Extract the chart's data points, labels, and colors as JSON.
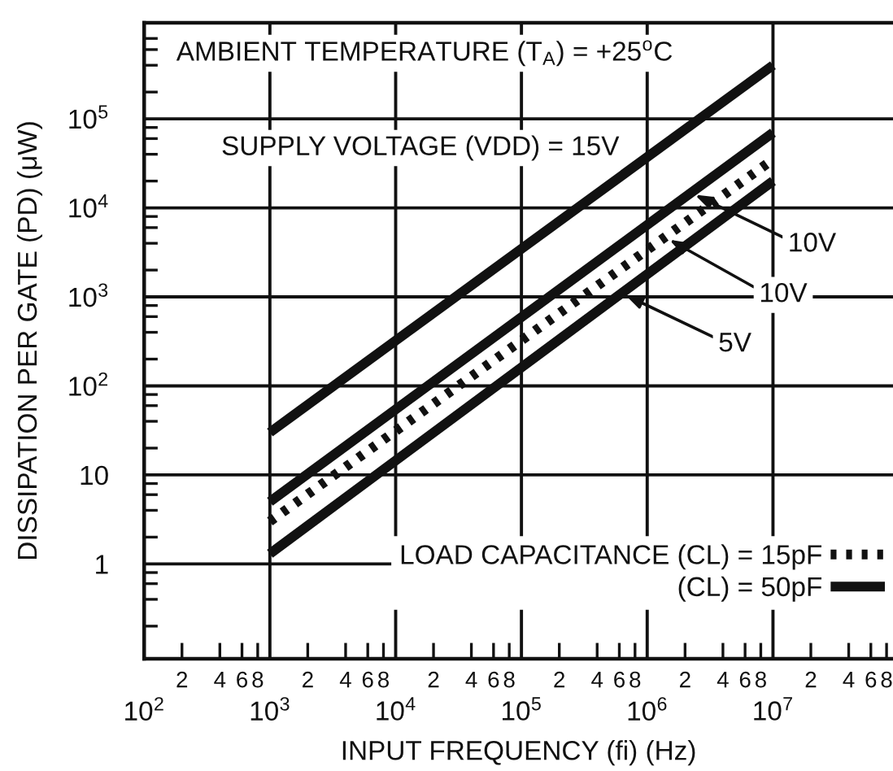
{
  "chart_data": {
    "type": "line",
    "xlabel": "INPUT FREQUENCY (fi) (Hz)",
    "ylabel": "DISSIPATION PER GATE (PD) (μW)",
    "x": [
      1000,
      10000000
    ],
    "series": [
      {
        "name": "LOAD CAPACITANCE (CL) = 15pF",
        "color": "#111111",
        "line_style": "dotted",
        "values": [
          3,
          35000
        ]
      },
      {
        "name": "(CL) = 50pF",
        "color": "#111111",
        "values": [
          30,
          400000
        ]
      },
      {
        "color": "#111111",
        "values": [
          5,
          70000
        ]
      },
      {
        "color": "#111111",
        "values": [
          1.3,
          20000
        ]
      }
    ],
    "line_style": "solid",
    "log": "xy",
    "xlim": [
      100,
      90000000
    ],
    "ylim": [
      0.086,
      1200000
    ],
    "xticks": [
      {
        "value": 100,
        "label": "10$^{2}$"
      },
      {
        "value": 200,
        "label": null
      },
      {
        "value": 400,
        "label": null
      },
      {
        "value": 600,
        "label": null
      },
      {
        "value": 800,
        "label": null
      },
      {
        "value": 1000,
        "label": "10$^{3}$"
      },
      {
        "value": 2000,
        "label": null
      },
      {
        "value": 4000,
        "label": null
      },
      {
        "value": 6000,
        "label": null
      },
      {
        "value": 8000,
        "label": null
      },
      {
        "value": 10000,
        "label": "10$^{4}$"
      },
      {
        "value": 20000,
        "label": null
      },
      {
        "value": 40000,
        "label": null
      },
      {
        "value": 60000,
        "label": null
      },
      {
        "value": 80000,
        "label": null
      },
      {
        "value": 100000,
        "label": "10$^{5}$"
      },
      {
        "value": 200000,
        "label": null
      },
      {
        "value": 400000,
        "label": null
      },
      {
        "value": 600000,
        "label": null
      },
      {
        "value": 800000,
        "label": null
      },
      {
        "value": 1000000,
        "label": "10$^{6}$"
      },
      {
        "value": 2000000,
        "label": null
      },
      {
        "value": 4000000,
        "label": null
      },
      {
        "value": 6000000,
        "label": null
      },
      {
        "value": 8000000,
        "label": null
      },
      {
        "value": 10000000,
        "label": "10$^{7}$"
      },
      {
        "value": 20000000,
        "label": null
      },
      {
        "value": 40000000,
        "label": null
      },
      {
        "value": 60000000,
        "label": null
      },
      {
        "value": 80000000,
        "label": null
      }
    ],
    "yticks": [
      {
        "value": 0.2,
        "label": null
      },
      {
        "value": 0.4,
        "label": null
      },
      {
        "value": 0.6,
        "label": null
      },
      {
        "value": 0.8,
        "label": null
      },
      1,
      {
        "value": 2,
        "label": null
      },
      {
        "value": 4,
        "label": null
      },
      {
        "value": 6,
        "label": null
      },
      {
        "value": 8,
        "label": null
      },
      10,
      {
        "value": 20,
        "label": null
      },
      {
        "value": 40,
        "label": null
      },
      {
        "value": 60,
        "label": null
      },
      {
        "value": 80,
        "label": null
      },
      {
        "value": 100,
        "label": "10$^{2}$"
      },
      {
        "value": 200,
        "label": null
      },
      {
        "value": 400,
        "label": null
      },
      {
        "value": 600,
        "label": null
      },
      {
        "value": 800,
        "label": null
      },
      {
        "value": 1000,
        "label": "10$^{3}$"
      },
      {
        "value": 2000,
        "label": null
      },
      {
        "value": 4000,
        "label": null
      },
      {
        "value": 6000,
        "label": null
      },
      {
        "value": 8000,
        "label": null
      },
      {
        "value": 10000,
        "label": "10$^{4}$"
      },
      {
        "value": 20000,
        "label": null
      },
      {
        "value": 40000,
        "label": null
      },
      {
        "value": 60000,
        "label": null
      },
      {
        "value": 80000,
        "label": null
      },
      {
        "value": 100000,
        "label": "10$^{5}$"
      },
      {
        "value": 200000,
        "label": null
      },
      {
        "value": 400000,
        "label": null
      },
      {
        "value": 600000,
        "label": null
      },
      {
        "value": 800000,
        "label": null
      }
    ],
    "grid": true,
    "legend": "bottom right",
    "annotations": [
      "AMBIENT TEMPERATURE (T$_{A}$) = +25$^{o}$C",
      "SUPPLY VOLTAGE (VDD) = 15V",
      {
        "text": "10V",
        "x": 2400000,
        "y": 14000
      },
      {
        "text": "10V",
        "x": 1500000,
        "y": 4400
      },
      {
        "text": "5V",
        "x": 670000,
        "y": 1050
      },
      "2",
      "4",
      "6",
      "8",
      "2",
      "4",
      "6",
      "8",
      "2",
      "4",
      "6",
      "8",
      "2",
      "4",
      "6",
      "8",
      "2",
      "4",
      "6",
      "8",
      "2",
      "4",
      "6",
      "8"
    ]
  }
}
